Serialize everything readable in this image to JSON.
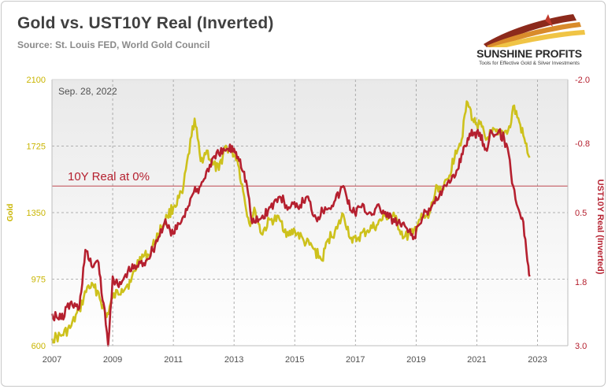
{
  "header": {
    "title": "Gold vs. UST10Y Real (Inverted)",
    "source": "Source: St. Louis FED, World Gold Council"
  },
  "logo": {
    "name": "SUNSHINE PROFITS",
    "tagline": "Tools for Effective Gold & Silver Investments"
  },
  "colors": {
    "gold": "#cdc11c",
    "real_yield": "#b5202f",
    "zero_line": "#c0484f",
    "plot_bg_top": "#e9e9e9",
    "plot_bg_bottom": "#ffffff",
    "grid": "#9a9a9a"
  },
  "chart_data": {
    "type": "line",
    "title": "Gold vs. UST10Y Real (Inverted)",
    "xlabel": "",
    "ylabel_left": "Gold",
    "ylabel_right": "UST10Y Real (Inverted)",
    "x_ticks": [
      "2007",
      "2009",
      "2011",
      "2013",
      "2015",
      "2017",
      "2019",
      "2021",
      "2023"
    ],
    "xlim": [
      2007,
      2024
    ],
    "y_left_ticks": [
      "2100",
      "1725",
      "1350",
      "975",
      "600"
    ],
    "y_left_lim": [
      600,
      2100
    ],
    "y_right_ticks": [
      "-2.0",
      "-0.8",
      "0.5",
      "1.8",
      "3.0"
    ],
    "y_right_lim": [
      3.0,
      -2.0
    ],
    "y_right_inverted": true,
    "grid": true,
    "annotations": {
      "date_label": "Sep. 28, 2022",
      "zero_line_label": "10Y Real at 0%"
    },
    "zero_line_value": 0,
    "series": [
      {
        "name": "Gold",
        "axis": "left",
        "x": [
          2007.0,
          2007.3,
          2007.6,
          2007.9,
          2008.2,
          2008.5,
          2008.8,
          2009.0,
          2009.3,
          2009.6,
          2009.9,
          2010.2,
          2010.5,
          2010.8,
          2011.0,
          2011.3,
          2011.6,
          2011.7,
          2011.9,
          2012.1,
          2012.3,
          2012.5,
          2012.7,
          2012.9,
          2013.1,
          2013.3,
          2013.5,
          2013.7,
          2013.9,
          2014.2,
          2014.5,
          2014.8,
          2015.0,
          2015.3,
          2015.6,
          2015.9,
          2016.1,
          2016.4,
          2016.6,
          2016.9,
          2017.1,
          2017.4,
          2017.7,
          2018.0,
          2018.3,
          2018.6,
          2018.9,
          2019.1,
          2019.4,
          2019.7,
          2019.9,
          2020.1,
          2020.3,
          2020.5,
          2020.6,
          2020.7,
          2020.9,
          2021.1,
          2021.3,
          2021.5,
          2021.7,
          2021.9,
          2022.1,
          2022.2,
          2022.4,
          2022.6,
          2022.74
        ],
        "y": [
          640,
          655,
          700,
          800,
          940,
          910,
          760,
          870,
          920,
          960,
          1100,
          1110,
          1230,
          1330,
          1380,
          1460,
          1780,
          1880,
          1640,
          1700,
          1620,
          1590,
          1720,
          1700,
          1660,
          1470,
          1290,
          1360,
          1230,
          1310,
          1310,
          1220,
          1250,
          1190,
          1150,
          1080,
          1200,
          1260,
          1340,
          1180,
          1210,
          1250,
          1280,
          1330,
          1320,
          1210,
          1230,
          1310,
          1320,
          1500,
          1480,
          1560,
          1700,
          1760,
          1900,
          1970,
          1860,
          1850,
          1760,
          1800,
          1790,
          1800,
          1830,
          1950,
          1860,
          1740,
          1660
        ]
      },
      {
        "name": "UST10Y Real (Inverted)",
        "axis": "right",
        "x": [
          2007.0,
          2007.3,
          2007.6,
          2007.9,
          2008.1,
          2008.3,
          2008.5,
          2008.7,
          2008.85,
          2009.0,
          2009.2,
          2009.5,
          2009.8,
          2010.1,
          2010.4,
          2010.7,
          2011.0,
          2011.3,
          2011.6,
          2011.9,
          2012.2,
          2012.5,
          2012.8,
          2013.0,
          2013.2,
          2013.4,
          2013.6,
          2013.9,
          2014.2,
          2014.5,
          2014.8,
          2015.1,
          2015.4,
          2015.7,
          2016.0,
          2016.3,
          2016.6,
          2016.9,
          2017.2,
          2017.5,
          2017.8,
          2018.1,
          2018.4,
          2018.7,
          2018.9,
          2019.2,
          2019.5,
          2019.8,
          2020.0,
          2020.15,
          2020.3,
          2020.5,
          2020.7,
          2020.9,
          2021.1,
          2021.3,
          2021.5,
          2021.7,
          2021.9,
          2022.05,
          2022.2,
          2022.35,
          2022.5,
          2022.6,
          2022.7,
          2022.74
        ],
        "y": [
          2.4,
          2.5,
          2.2,
          2.3,
          1.2,
          1.5,
          1.4,
          2.2,
          3.0,
          1.7,
          1.9,
          1.6,
          1.5,
          1.4,
          1.1,
          0.7,
          0.9,
          0.6,
          0.2,
          0.0,
          -0.4,
          -0.6,
          -0.7,
          -0.7,
          -0.5,
          -0.1,
          0.7,
          0.6,
          0.4,
          0.2,
          0.4,
          0.4,
          0.2,
          0.6,
          0.4,
          0.3,
          0.0,
          0.5,
          0.4,
          0.5,
          0.4,
          0.6,
          0.7,
          0.8,
          1.0,
          0.6,
          0.4,
          0.1,
          0.0,
          -0.1,
          -0.2,
          -0.6,
          -0.9,
          -1.0,
          -1.0,
          -0.7,
          -1.0,
          -1.0,
          -0.9,
          -0.6,
          0.0,
          0.4,
          0.6,
          1.0,
          1.5,
          1.7
        ]
      }
    ]
  }
}
